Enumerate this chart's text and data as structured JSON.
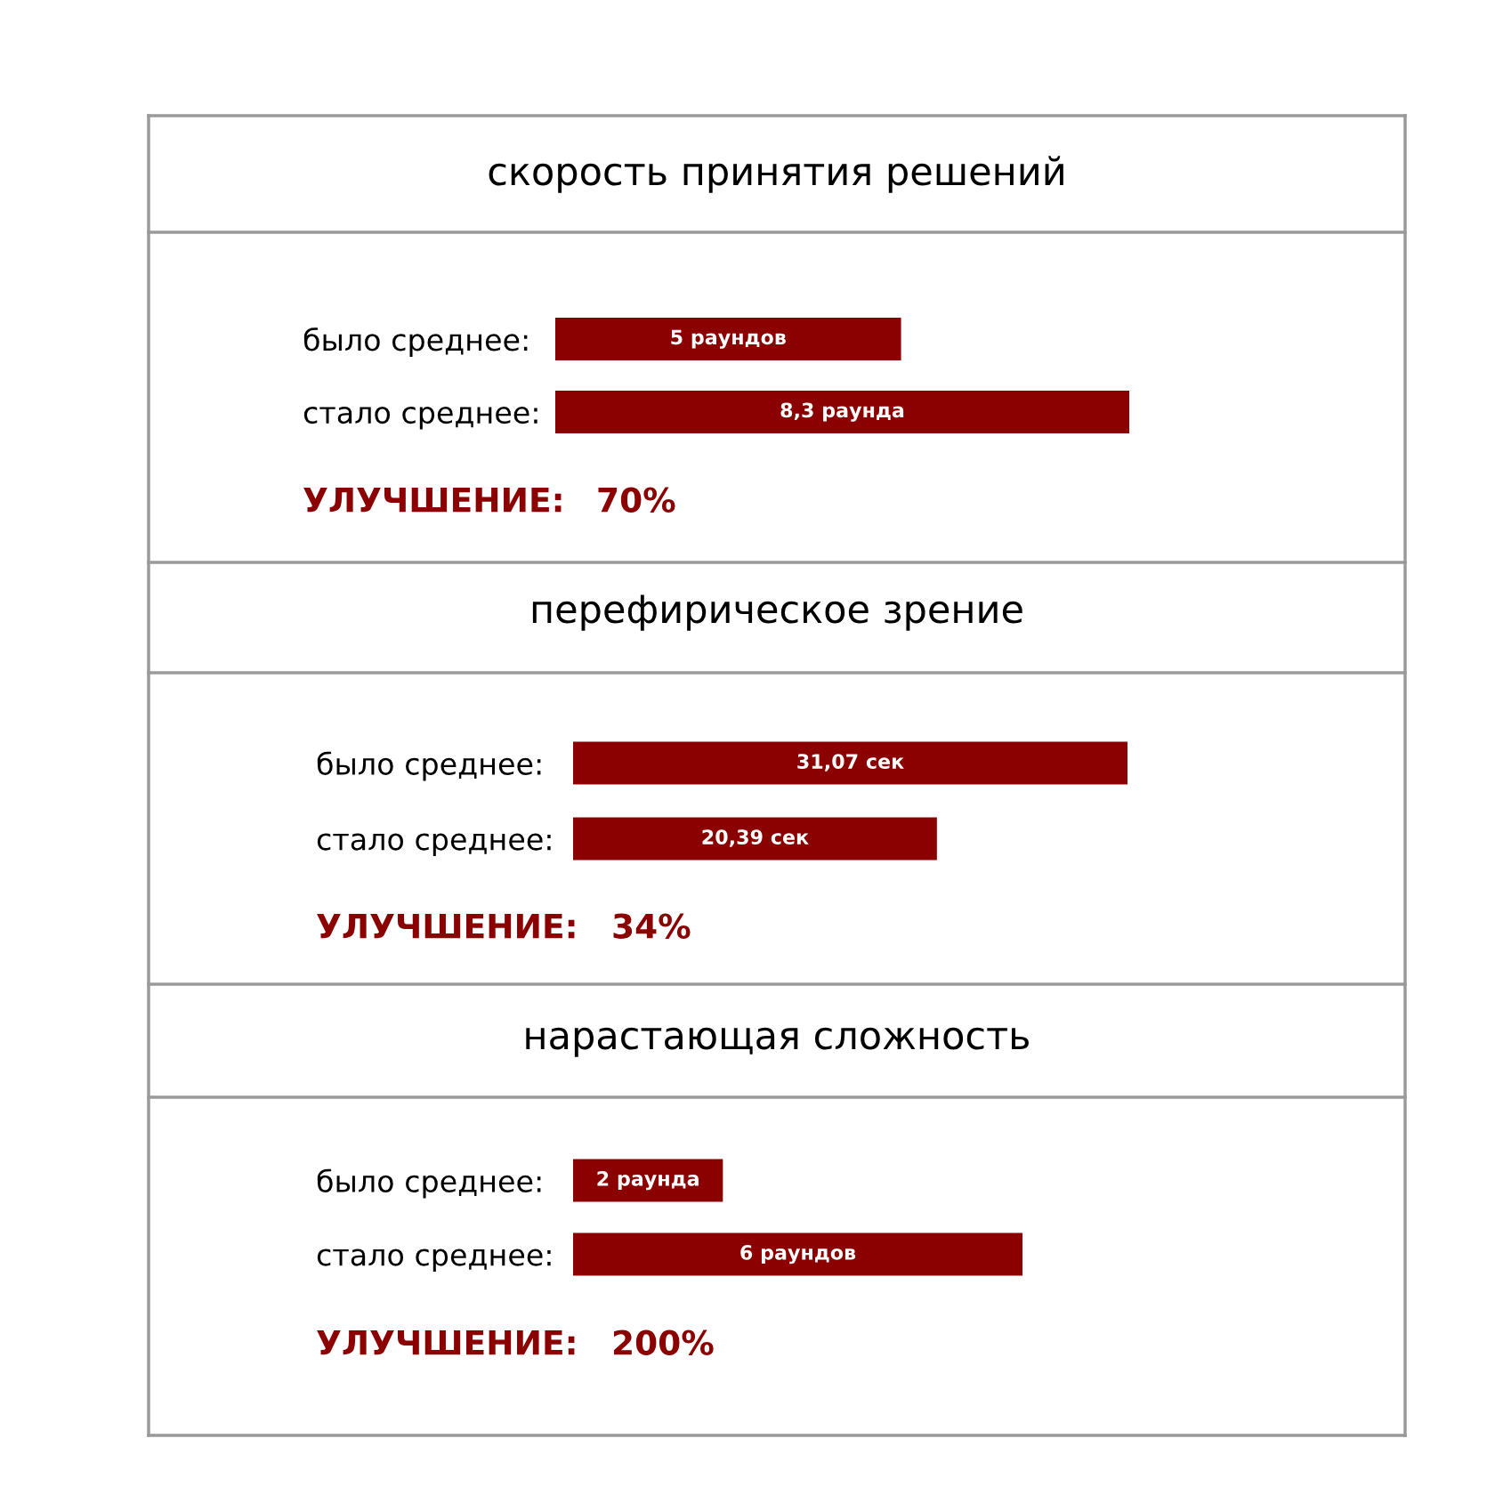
{
  "chart_data": [
    {
      "type": "bar",
      "orientation": "horizontal",
      "title": "скорость принятия решений",
      "categories": [
        "было среднее",
        "стало среднее"
      ],
      "values": [
        5,
        8.3
      ],
      "value_labels": [
        "5 раундов",
        "8,3 раунда"
      ],
      "color": "#8b0000",
      "annotations": [
        "УЛУЧШЕНИЕ:",
        "70%",
        ":",
        ":"
      ]
    },
    {
      "type": "bar",
      "orientation": "horizontal",
      "title": "перефирическое зрение",
      "categories": [
        "было среднее",
        "стало среднее"
      ],
      "values": [
        31.07,
        20.39
      ],
      "value_labels": [
        "31,07 сек",
        "20,39 сек"
      ],
      "color": "#8b0000",
      "annotations": [
        "УЛУЧШЕНИЕ:",
        "34%",
        ":",
        ":"
      ]
    },
    {
      "type": "bar",
      "orientation": "horizontal",
      "title": "нарастающая сложность",
      "categories": [
        "было среднее",
        "стало среднее"
      ],
      "values": [
        2,
        6
      ],
      "value_labels": [
        "2 раунда",
        "6 раундов"
      ],
      "color": "#8b0000",
      "annotations": [
        "УЛУЧШЕНИЕ:",
        "200%",
        ":",
        ":"
      ]
    }
  ]
}
